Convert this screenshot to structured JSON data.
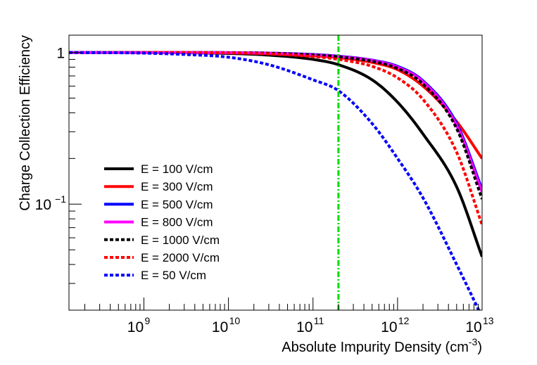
{
  "chart_data": {
    "type": "line",
    "title": "",
    "xlabel": "Absolute Impurity Density (cm",
    "xlabel_sup": "-3",
    "xlabel_close": ")",
    "ylabel": "Charge Collection Efficiency",
    "x_scale": "log",
    "y_scale": "log",
    "xlim": [
      130000000.0,
      10000000000000.0
    ],
    "ylim": [
      0.02,
      1.3
    ],
    "grid": false,
    "legend_position": "bottom-left",
    "x_ticks": [
      {
        "value": 1000000000.0,
        "base": "10",
        "exp": "9"
      },
      {
        "value": 10000000000.0,
        "base": "10",
        "exp": "10"
      },
      {
        "value": 100000000000.0,
        "base": "10",
        "exp": "11"
      },
      {
        "value": 1000000000000.0,
        "base": "10",
        "exp": "12"
      },
      {
        "value": 10000000000000.0,
        "base": "10",
        "exp": "13"
      }
    ],
    "y_ticks": [
      {
        "value": 1,
        "base": "1",
        "exp": ""
      },
      {
        "value": 0.1,
        "base": "10",
        "exp": "−1"
      }
    ],
    "vertical_marker": {
      "x": 200000000000.0,
      "color": "#00dd00",
      "style": "dash-dot"
    },
    "x": [
      130000000.0,
      1000000000.0,
      3000000000.0,
      10000000000.0,
      30000000000.0,
      100000000000.0,
      200000000000.0,
      500000000000.0,
      1000000000000.0,
      2000000000000.0,
      5000000000000.0,
      10000000000000.0
    ],
    "series": [
      {
        "name": "E = 100 V/cm",
        "color": "#000000",
        "dash": false,
        "values": [
          1.0,
          1.0,
          0.995,
          0.985,
          0.96,
          0.9,
          0.83,
          0.66,
          0.47,
          0.29,
          0.13,
          0.045
        ]
      },
      {
        "name": "E = 300 V/cm",
        "color": "#ff0000",
        "dash": false,
        "values": [
          1.0,
          1.0,
          0.998,
          0.995,
          0.98,
          0.95,
          0.925,
          0.86,
          0.77,
          0.6,
          0.35,
          0.2
        ]
      },
      {
        "name": "E = 500 V/cm",
        "color": "#0000ff",
        "dash": false,
        "values": [
          1.0,
          1.0,
          0.999,
          0.997,
          0.99,
          0.97,
          0.945,
          0.89,
          0.81,
          0.65,
          0.34,
          0.125
        ]
      },
      {
        "name": "E = 800 V/cm",
        "color": "#ff00ff",
        "dash": false,
        "values": [
          1.0,
          1.0,
          0.999,
          0.997,
          0.99,
          0.965,
          0.94,
          0.885,
          0.8,
          0.64,
          0.33,
          0.12
        ]
      },
      {
        "name": "E = 1000 V/cm",
        "color": "#000000",
        "dash": true,
        "values": [
          1.0,
          1.0,
          0.999,
          0.996,
          0.988,
          0.962,
          0.935,
          0.875,
          0.785,
          0.62,
          0.315,
          0.108
        ]
      },
      {
        "name": "E = 2000 V/cm",
        "color": "#ff0000",
        "dash": true,
        "values": [
          1.0,
          1.0,
          0.998,
          0.993,
          0.978,
          0.94,
          0.9,
          0.81,
          0.68,
          0.49,
          0.22,
          0.073
        ]
      },
      {
        "name": "E = 50 V/cm",
        "color": "#0000ff",
        "dash": true,
        "values": [
          1.0,
          0.99,
          0.97,
          0.93,
          0.83,
          0.66,
          0.56,
          0.34,
          0.2,
          0.11,
          0.04,
          0.018
        ]
      }
    ]
  }
}
